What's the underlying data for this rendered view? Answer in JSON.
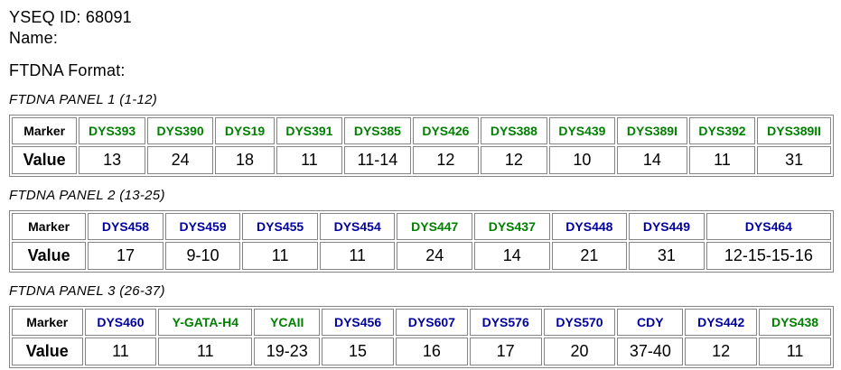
{
  "page": {
    "yseq_id": "YSEQ ID: 68091",
    "name_label": "Name:",
    "format_label": "FTDNA Format:"
  },
  "colors": {
    "green": "#008000",
    "navy": "#0000A0",
    "border": "#848484",
    "text": "#000000",
    "background": "#ffffff"
  },
  "table_headers": {
    "marker": "Marker",
    "value": "Value"
  },
  "panels": [
    {
      "title": "FTDNA PANEL 1 (1-12)",
      "markers": [
        {
          "name": "DYS393",
          "color": "green",
          "value": "13"
        },
        {
          "name": "DYS390",
          "color": "green",
          "value": "24"
        },
        {
          "name": "DYS19",
          "color": "green",
          "value": "18"
        },
        {
          "name": "DYS391",
          "color": "green",
          "value": "11"
        },
        {
          "name": "DYS385",
          "color": "green",
          "value": "11-14"
        },
        {
          "name": "DYS426",
          "color": "green",
          "value": "12"
        },
        {
          "name": "DYS388",
          "color": "green",
          "value": "12"
        },
        {
          "name": "DYS439",
          "color": "green",
          "value": "10"
        },
        {
          "name": "DYS389I",
          "color": "green",
          "value": "14"
        },
        {
          "name": "DYS392",
          "color": "green",
          "value": "11"
        },
        {
          "name": "DYS389II",
          "color": "green",
          "value": "31"
        }
      ]
    },
    {
      "title": "FTDNA PANEL 2 (13-25)",
      "markers": [
        {
          "name": "DYS458",
          "color": "navy",
          "value": "17"
        },
        {
          "name": "DYS459",
          "color": "navy",
          "value": "9-10"
        },
        {
          "name": "DYS455",
          "color": "navy",
          "value": "11"
        },
        {
          "name": "DYS454",
          "color": "navy",
          "value": "11"
        },
        {
          "name": "DYS447",
          "color": "green",
          "value": "24"
        },
        {
          "name": "DYS437",
          "color": "green",
          "value": "14"
        },
        {
          "name": "DYS448",
          "color": "navy",
          "value": "21"
        },
        {
          "name": "DYS449",
          "color": "navy",
          "value": "31"
        },
        {
          "name": "DYS464",
          "color": "navy",
          "value": "12-15-15-16"
        }
      ]
    },
    {
      "title": "FTDNA PANEL 3 (26-37)",
      "markers": [
        {
          "name": "DYS460",
          "color": "navy",
          "value": "11"
        },
        {
          "name": "Y-GATA-H4",
          "color": "green",
          "value": "11"
        },
        {
          "name": "YCAII",
          "color": "green",
          "value": "19-23"
        },
        {
          "name": "DYS456",
          "color": "navy",
          "value": "15"
        },
        {
          "name": "DYS607",
          "color": "navy",
          "value": "16"
        },
        {
          "name": "DYS576",
          "color": "navy",
          "value": "17"
        },
        {
          "name": "DYS570",
          "color": "navy",
          "value": "20"
        },
        {
          "name": "CDY",
          "color": "navy",
          "value": "37-40"
        },
        {
          "name": "DYS442",
          "color": "navy",
          "value": "12"
        },
        {
          "name": "DYS438",
          "color": "green",
          "value": "11"
        }
      ]
    }
  ]
}
